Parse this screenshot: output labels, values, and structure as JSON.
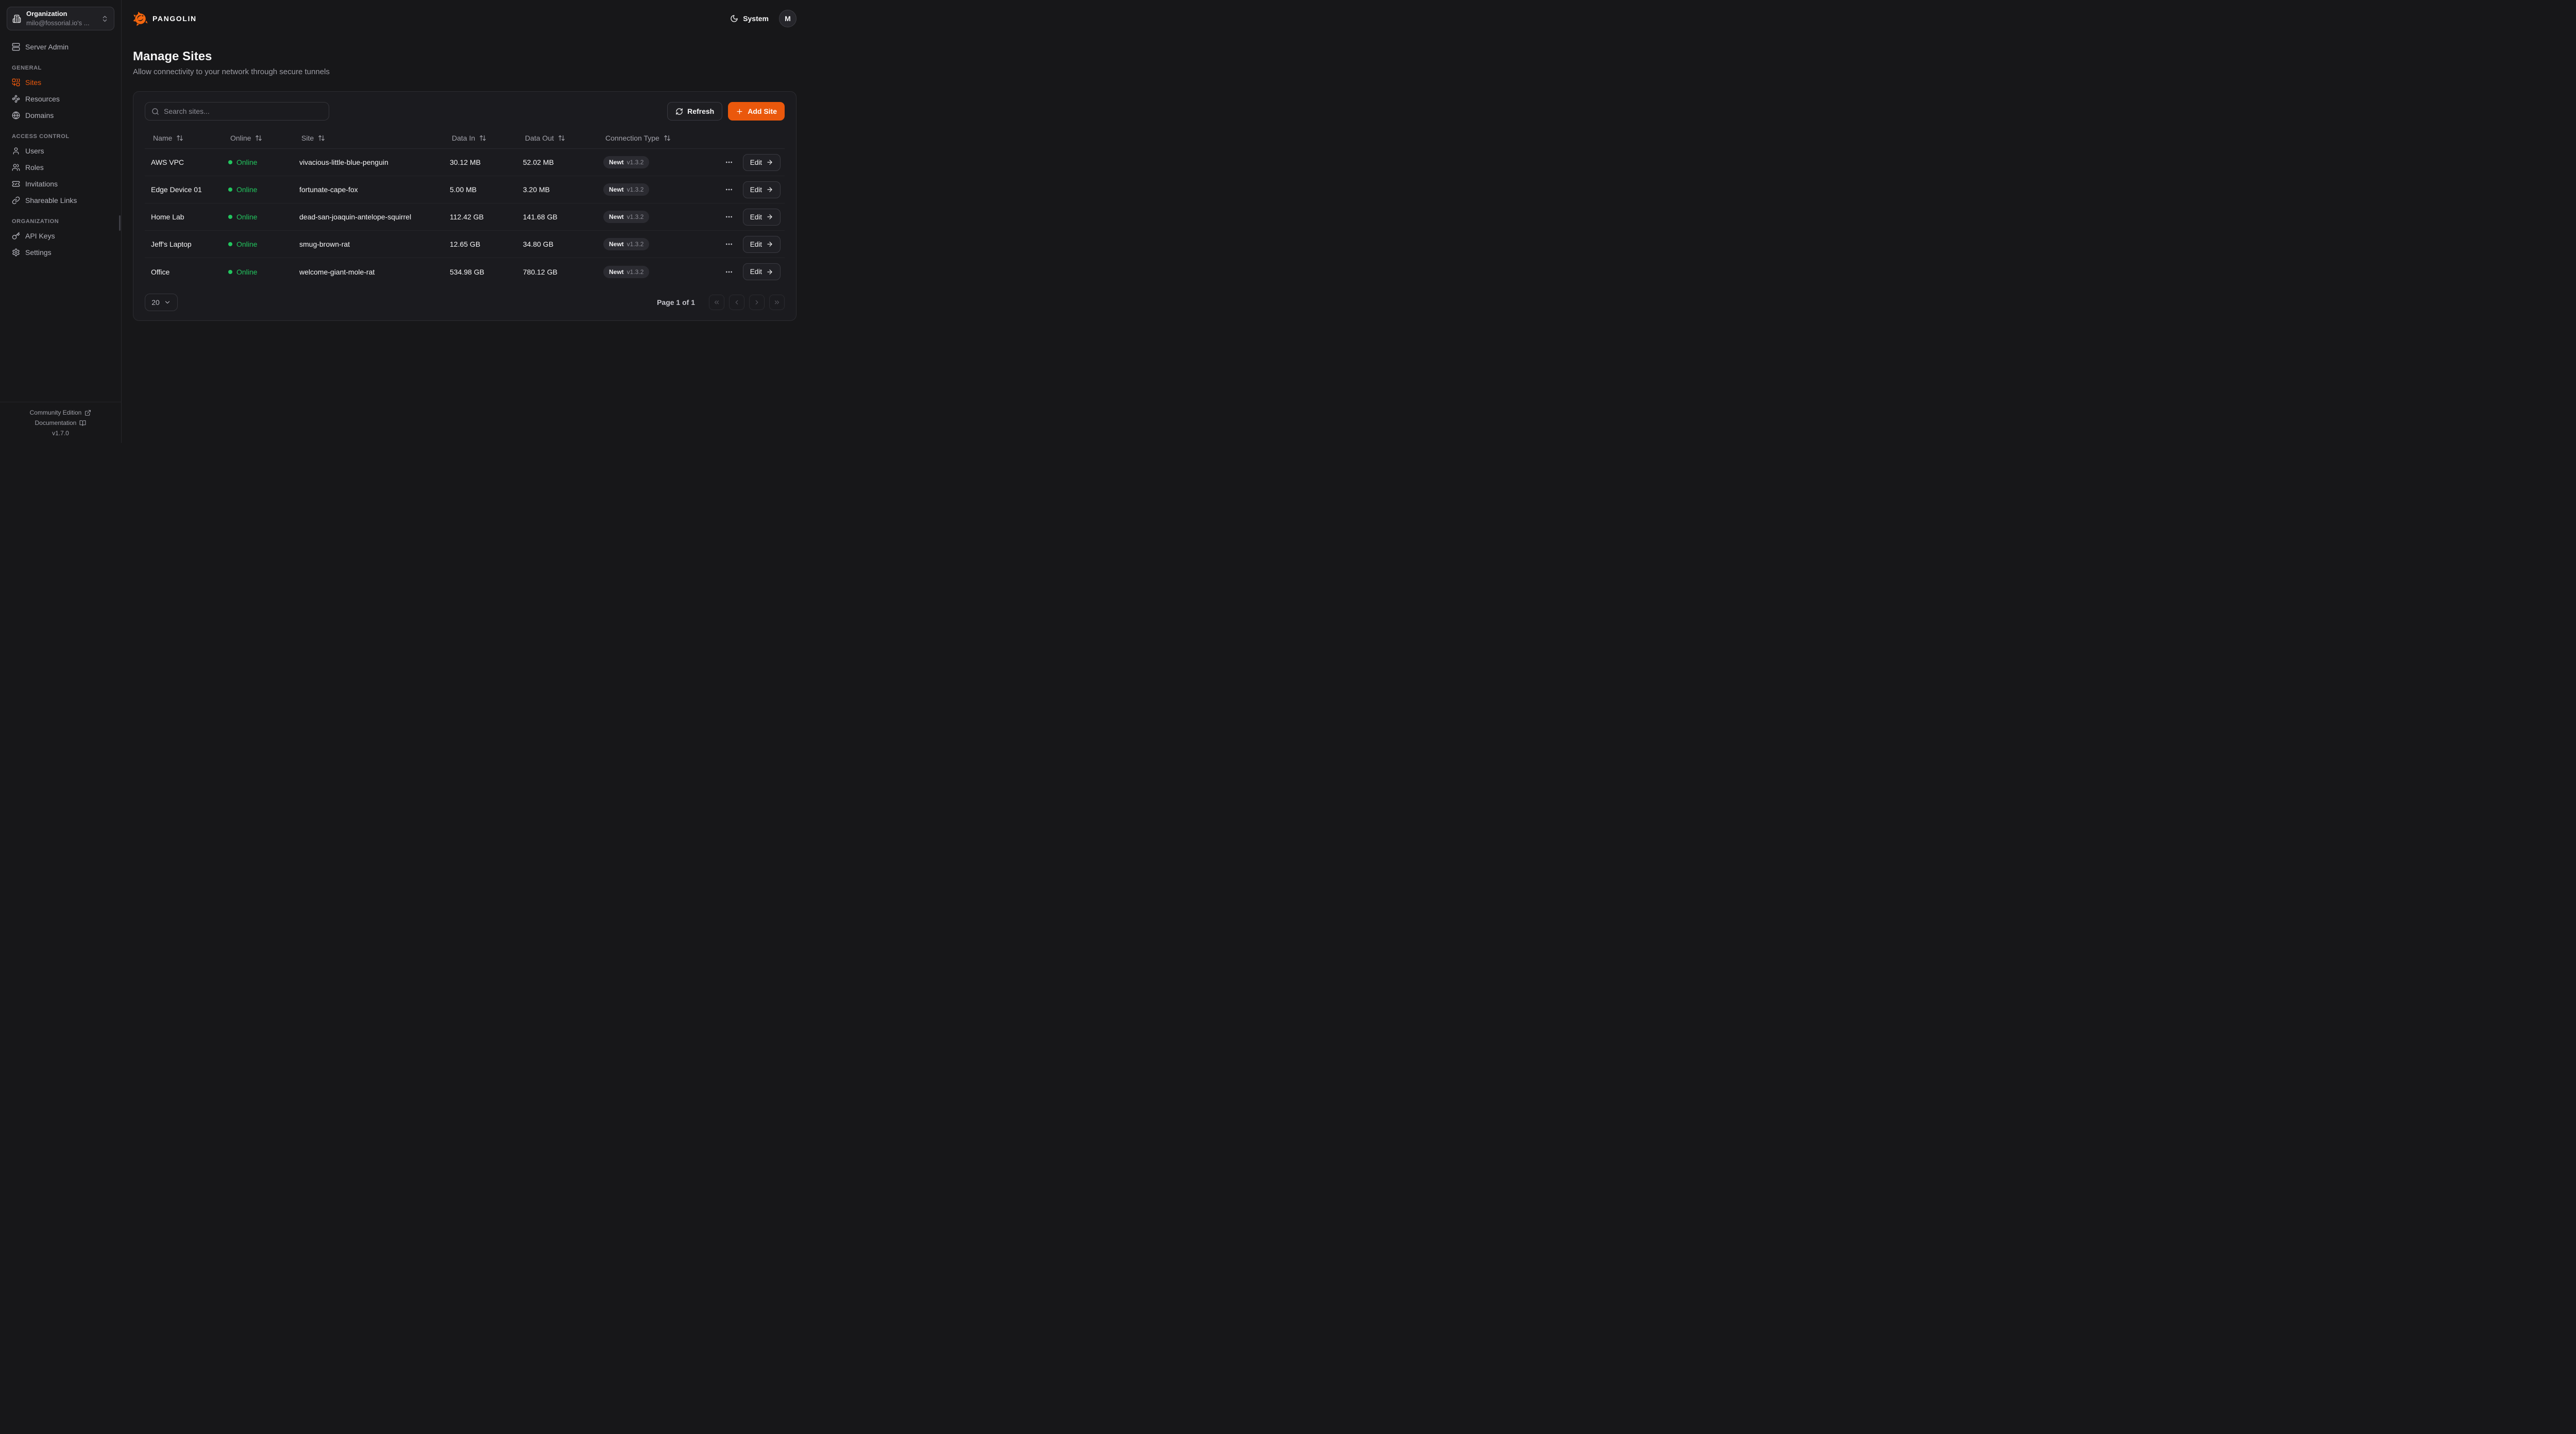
{
  "colors": {
    "accent": "#ea580c",
    "brand_orange": "#f4660e",
    "online_green": "#22c55e"
  },
  "sidebar": {
    "org_selector": {
      "label": "Organization",
      "value": "milo@fossorial.io's ..."
    },
    "top_items": [
      {
        "label": "Server Admin",
        "icon": "server"
      }
    ],
    "sections": [
      {
        "label": "GENERAL",
        "items": [
          {
            "label": "Sites",
            "icon": "combine",
            "active": true
          },
          {
            "label": "Resources",
            "icon": "waypoints",
            "active": false
          },
          {
            "label": "Domains",
            "icon": "globe",
            "active": false
          }
        ]
      },
      {
        "label": "ACCESS CONTROL",
        "items": [
          {
            "label": "Users",
            "icon": "user",
            "active": false
          },
          {
            "label": "Roles",
            "icon": "users",
            "active": false
          },
          {
            "label": "Invitations",
            "icon": "ticket-check",
            "active": false
          },
          {
            "label": "Shareable Links",
            "icon": "link",
            "active": false
          }
        ]
      },
      {
        "label": "ORGANIZATION",
        "items": [
          {
            "label": "API Keys",
            "icon": "key",
            "active": false
          },
          {
            "label": "Settings",
            "icon": "gear",
            "active": false
          }
        ]
      }
    ],
    "footer": {
      "community_label": "Community Edition",
      "docs_label": "Documentation",
      "version": "v1.7.0"
    }
  },
  "topbar": {
    "brand": "PANGOLIN",
    "theme_label": "System",
    "avatar_initial": "M"
  },
  "page": {
    "title": "Manage Sites",
    "subtitle": "Allow connectivity to your network through secure tunnels"
  },
  "toolbar": {
    "search_placeholder": "Search sites...",
    "refresh_label": "Refresh",
    "add_site_label": "Add Site"
  },
  "table": {
    "columns": [
      "Name",
      "Online",
      "Site",
      "Data In",
      "Data Out",
      "Connection Type"
    ],
    "rows": [
      {
        "name": "AWS VPC",
        "status": "Online",
        "site": "vivacious-little-blue-penguin",
        "data_in": "30.12 MB",
        "data_out": "52.02 MB",
        "connection_type": "Newt",
        "connection_version": "v1.3.2",
        "edit_label": "Edit"
      },
      {
        "name": "Edge Device 01",
        "status": "Online",
        "site": "fortunate-cape-fox",
        "data_in": "5.00 MB",
        "data_out": "3.20 MB",
        "connection_type": "Newt",
        "connection_version": "v1.3.2",
        "edit_label": "Edit"
      },
      {
        "name": "Home Lab",
        "status": "Online",
        "site": "dead-san-joaquin-antelope-squirrel",
        "data_in": "112.42 GB",
        "data_out": "141.68 GB",
        "connection_type": "Newt",
        "connection_version": "v1.3.2",
        "edit_label": "Edit"
      },
      {
        "name": "Jeff's Laptop",
        "status": "Online",
        "site": "smug-brown-rat",
        "data_in": "12.65 GB",
        "data_out": "34.80 GB",
        "connection_type": "Newt",
        "connection_version": "v1.3.2",
        "edit_label": "Edit"
      },
      {
        "name": "Office",
        "status": "Online",
        "site": "welcome-giant-mole-rat",
        "data_in": "534.98 GB",
        "data_out": "780.12 GB",
        "connection_type": "Newt",
        "connection_version": "v1.3.2",
        "edit_label": "Edit"
      }
    ]
  },
  "pagination": {
    "page_size": "20",
    "page_status": "Page 1 of 1"
  }
}
